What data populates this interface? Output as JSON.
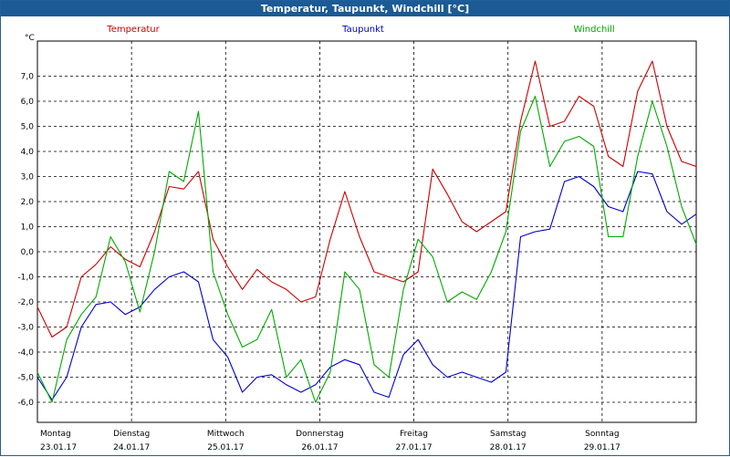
{
  "window": {
    "title": "Temperatur, Taupunkt, Windchill [°C]"
  },
  "chart_data": {
    "type": "line",
    "title": "Temperatur, Taupunkt, Windchill [°C]",
    "ylabel": "°C",
    "ylim": [
      -6.8,
      8.4
    ],
    "grid": true,
    "legend_placement": "top",
    "y_ticks": [
      "7,0",
      "6,0",
      "5,0",
      "4,0",
      "3,0",
      "2,0",
      "1,0",
      "0,0",
      "-1,0",
      "-2,0",
      "-3,0",
      "-4,0",
      "-5,0",
      "-6,0"
    ],
    "days": [
      {
        "name": "Montag",
        "date": "23.01.17"
      },
      {
        "name": "Dienstag",
        "date": "24.01.17"
      },
      {
        "name": "Mittwoch",
        "date": "25.01.17"
      },
      {
        "name": "Donnerstag",
        "date": "26.01.17"
      },
      {
        "name": "Freitag",
        "date": "27.01.17"
      },
      {
        "name": "Samstag",
        "date": "28.01.17"
      },
      {
        "name": "Sonntag",
        "date": "29.01.17"
      }
    ],
    "x_hours": [
      0,
      6,
      12,
      18,
      24,
      30,
      36,
      42,
      48,
      54,
      60,
      66,
      72,
      78,
      84,
      90,
      96,
      102,
      108,
      114,
      120,
      126,
      132,
      138,
      144,
      150,
      156,
      162,
      168
    ],
    "series": [
      {
        "name": "Temperatur",
        "color": "#cc0000",
        "values": [
          -2.2,
          -3.4,
          -3.0,
          -1.0,
          -0.5,
          0.2,
          -0.3,
          -0.6,
          0.8,
          2.6,
          2.5,
          3.2,
          0.5,
          -0.6,
          -1.5,
          -0.7,
          -1.2,
          -1.5,
          -2.0,
          -1.8,
          0.5,
          2.4,
          0.6,
          -0.8,
          -1.0,
          -1.2,
          -0.8,
          3.3,
          2.3
        ]
      },
      {
        "name": "Taupunkt",
        "color": "#0000cc",
        "values": [
          -5.0,
          -5.9,
          -5.0,
          -3.0,
          -2.1,
          -2.0,
          -2.5,
          -2.2,
          -1.5,
          -1.0,
          -0.8,
          -1.2,
          -3.5,
          -4.2,
          -5.6,
          -5.0,
          -4.9,
          -5.3,
          -5.6,
          -5.3,
          -4.6,
          -4.3,
          -4.5,
          -5.6,
          -5.8,
          -4.1,
          -3.5,
          -4.5,
          -5.0
        ]
      },
      {
        "name": "Windchill",
        "color": "#00aa00",
        "values": [
          -4.8,
          -6.0,
          -3.5,
          -2.5,
          -1.8,
          0.6,
          -0.4,
          -2.4,
          0.0,
          3.2,
          2.8,
          5.6,
          -0.8,
          -2.5,
          -3.8,
          -3.5,
          -2.3,
          -5.0,
          -4.3,
          -6.0,
          -4.8,
          -0.8,
          -1.5,
          -4.5,
          -5.0,
          -1.5,
          0.5,
          -0.2,
          -2.0
        ]
      }
    ],
    "series_extension": {
      "x_hours": [
        174,
        180,
        186,
        192,
        198,
        204,
        210,
        216,
        222,
        228,
        234,
        240,
        246,
        252,
        258,
        264,
        270
      ],
      "values": {
        "Temperatur": [
          1.2,
          0.8,
          1.2,
          1.6,
          5.2,
          7.6,
          5.0,
          5.2,
          6.2,
          5.8,
          3.8,
          3.4,
          6.4,
          7.6,
          5.0,
          3.6,
          3.4
        ],
        "Taupunkt": [
          -4.8,
          -5.0,
          -5.2,
          -4.8,
          0.6,
          0.8,
          0.9,
          2.8,
          3.0,
          2.6,
          1.8,
          1.6,
          3.2,
          3.1,
          1.6,
          1.1,
          1.5
        ],
        "Windchill": [
          -1.6,
          -1.9,
          -0.8,
          0.8,
          4.8,
          6.2,
          3.4,
          4.4,
          4.6,
          4.2,
          0.6,
          0.6,
          3.8,
          6.0,
          4.2,
          1.8,
          0.3
        ]
      }
    }
  }
}
